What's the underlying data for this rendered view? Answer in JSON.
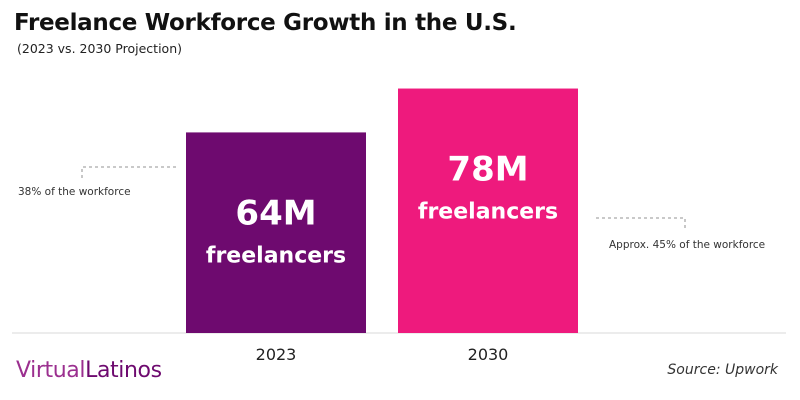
{
  "chart_data": {
    "type": "bar",
    "title": "Freelance Workforce Growth in the U.S.",
    "subtitle": "(2023 vs. 2030 Projection)",
    "categories": [
      "2023",
      "2030"
    ],
    "values": [
      64,
      78
    ],
    "value_labels": [
      "64M",
      "78M"
    ],
    "value_sublabel": "freelancers",
    "colors": [
      "#6e0a6f",
      "#ee1a7d"
    ],
    "ylim": [
      0,
      82
    ],
    "grid": false,
    "annotations": [
      "38% of the workforce",
      "Approx. 45% of the workforce"
    ]
  },
  "footer": {
    "logo_part1": "Virtual",
    "logo_part2": "Latinos",
    "source": "Source: Upwork"
  }
}
